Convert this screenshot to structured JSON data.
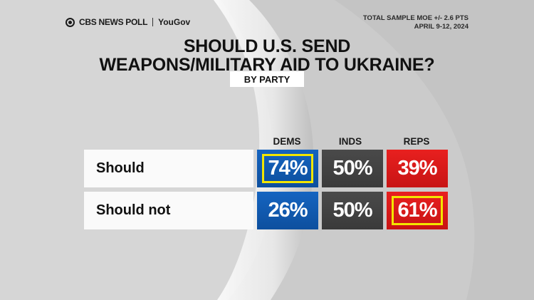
{
  "header": {
    "brand": "CBS NEWS POLL",
    "partner": "YouGov",
    "moe": "TOTAL SAMPLE MOE +/- 2.6 PTS",
    "dates": "APRIL 9-12, 2024"
  },
  "colors": {
    "dems": "#1564c0",
    "inds": "#4a4a4a",
    "reps": "#e8201f",
    "highlight": "#f2e600"
  },
  "chart_data": {
    "type": "table",
    "title_lines": [
      "SHOULD U.S. SEND",
      "WEAPONS/MILITARY AID TO UKRAINE?"
    ],
    "subtitle": "BY PARTY",
    "columns": [
      "DEMS",
      "INDS",
      "REPS"
    ],
    "rows": [
      {
        "label": "Should",
        "values": [
          "74%",
          "50%",
          "39%"
        ],
        "highlight": [
          true,
          false,
          false
        ]
      },
      {
        "label": "Should not",
        "values": [
          "26%",
          "50%",
          "61%"
        ],
        "highlight": [
          false,
          false,
          true
        ]
      }
    ]
  }
}
